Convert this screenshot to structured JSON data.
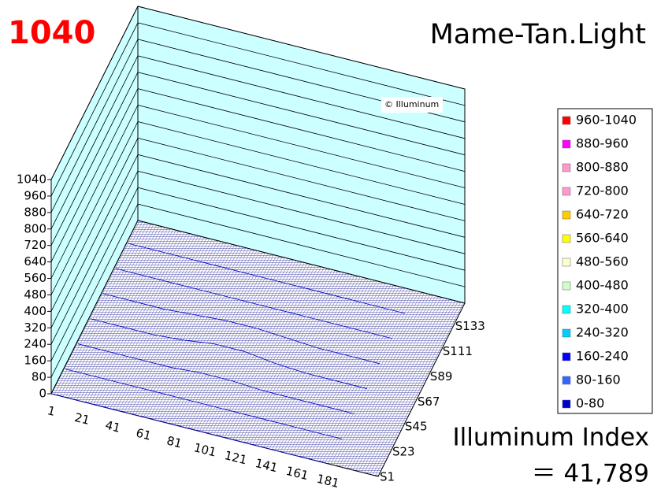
{
  "chart_data": {
    "type": "surface",
    "title": "Mame-Tan.Light",
    "corner_label": "1040",
    "watermark": "© Illuminum",
    "annotations": [
      "Illuminum Index",
      "＝ 41,789"
    ],
    "categories": [
      "1",
      "21",
      "41",
      "61",
      "81",
      "101",
      "121",
      "141",
      "161",
      "181"
    ],
    "series": [
      {
        "name": "S1",
        "values": [
          0,
          0,
          0,
          0,
          0,
          0,
          0,
          0,
          0,
          0
        ]
      },
      {
        "name": "S23",
        "values": [
          0,
          0,
          0,
          0,
          0,
          0,
          0,
          0,
          0,
          0
        ]
      },
      {
        "name": "S45",
        "values": [
          0,
          0,
          0,
          0,
          10,
          10,
          0,
          0,
          0,
          0
        ]
      },
      {
        "name": "S67",
        "values": [
          0,
          0,
          0,
          10,
          30,
          30,
          10,
          0,
          0,
          0
        ]
      },
      {
        "name": "S89",
        "values": [
          0,
          0,
          0,
          10,
          20,
          20,
          10,
          0,
          0,
          0
        ]
      },
      {
        "name": "S111",
        "values": [
          0,
          0,
          0,
          0,
          0,
          0,
          0,
          0,
          0,
          0
        ]
      },
      {
        "name": "S133",
        "values": [
          0,
          0,
          0,
          0,
          0,
          0,
          0,
          0,
          0,
          0
        ]
      }
    ],
    "zlim": [
      0,
      1040
    ],
    "zticks": [
      0,
      80,
      160,
      240,
      320,
      400,
      480,
      560,
      640,
      720,
      800,
      880,
      960,
      1040
    ],
    "grid": true,
    "legend": "right",
    "bands": [
      {
        "label": "960-1040",
        "color": "#ff0000"
      },
      {
        "label": "880-960",
        "color": "#ff00ff"
      },
      {
        "label": "800-880",
        "color": "#ff99cc"
      },
      {
        "label": "720-800",
        "color": "#ff99cc"
      },
      {
        "label": "640-720",
        "color": "#ffcc00"
      },
      {
        "label": "560-640",
        "color": "#ffff00"
      },
      {
        "label": "480-560",
        "color": "#ffffcc"
      },
      {
        "label": "400-480",
        "color": "#ccffcc"
      },
      {
        "label": "320-400",
        "color": "#00ffff"
      },
      {
        "label": "240-320",
        "color": "#00ccff"
      },
      {
        "label": "160-240",
        "color": "#0000ff"
      },
      {
        "label": "80-160",
        "color": "#3366ff"
      },
      {
        "label": "0-80",
        "color": "#0000cc"
      }
    ]
  }
}
